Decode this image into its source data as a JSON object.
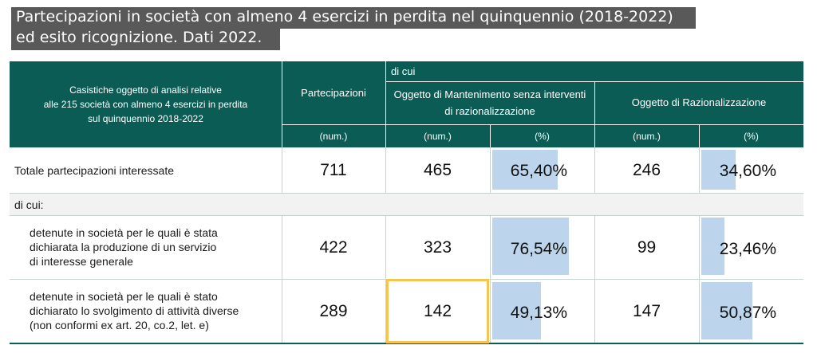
{
  "title": {
    "line1": "Partecipazioni in società con almeno 4 esercizi in perdita nel quinquennio (2018-2022)",
    "line2": "ed esito ricognizione. Dati 2022."
  },
  "header": {
    "casistiche": "Casistiche oggetto di analisi relative alle 215 società con almeno 4 esercizi in perdita sul quinquennio 2018-2022",
    "casistiche_lines": [
      "Casistiche oggetto di analisi relative",
      "alle 215 società con almeno 4 esercizi in perdita",
      "sul quinquennio 2018-2022"
    ],
    "partecipazioni": "Partecipazioni",
    "di_cui": "di cui",
    "mantenimento_lines": [
      "Oggetto di Mantenimento senza interventi",
      "di razionalizzazione"
    ],
    "razionalizzazione": "Oggetto di Razionalizzazione",
    "unit_num": "(num.)",
    "unit_pct": "(%)"
  },
  "rows": [
    {
      "label_lines": [
        "Totale partecipazioni interessate"
      ],
      "partecipazioni": "711",
      "mant_num": "465",
      "mant_pct": "65,40%",
      "mant_pct_value": 65.4,
      "raz_num": "246",
      "raz_pct": "34,60%",
      "raz_pct_value": 34.6
    },
    {
      "label_lines": [
        "detenute in società per le quali è stata",
        "dichiarata la produzione di un servizio",
        "di interesse generale"
      ],
      "partecipazioni": "422",
      "mant_num": "323",
      "mant_pct": "76,54%",
      "mant_pct_value": 76.54,
      "raz_num": "99",
      "raz_pct": "23,46%",
      "raz_pct_value": 23.46
    },
    {
      "label_lines": [
        "detenute in società per le quali è stato",
        "dichiarato lo svolgimento di attività diverse",
        "(non conformi ex art. 20, co.2, let. e)"
      ],
      "partecipazioni": "289",
      "mant_num": "142",
      "mant_pct": "49,13%",
      "mant_pct_value": 49.13,
      "raz_num": "147",
      "raz_pct": "50,87%",
      "raz_pct_value": 50.87
    }
  ],
  "di_cui_row": "di cui:",
  "colors": {
    "header_bg": "#0a5c55",
    "bar": "#bcd5ec",
    "highlight": "#f4c54f",
    "title_bg": "#595959"
  }
}
